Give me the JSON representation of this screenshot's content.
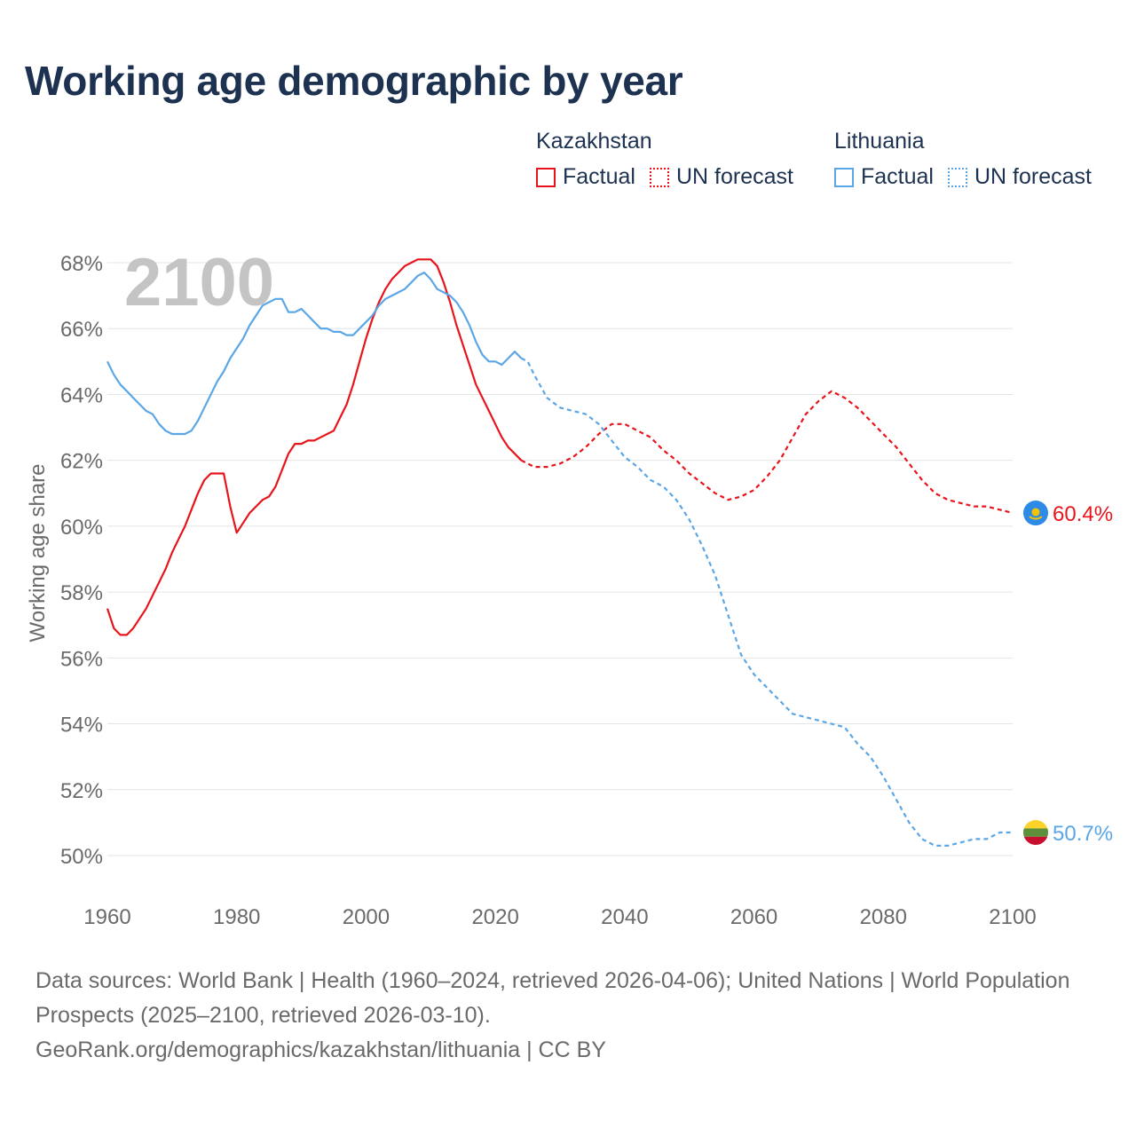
{
  "title": "Working age demographic by year",
  "year_watermark": "2100",
  "legend": {
    "groups": [
      {
        "name": "Kazakhstan",
        "factual_label": "Factual",
        "forecast_label": "UN forecast",
        "color": "#e8141b"
      },
      {
        "name": "Lithuania",
        "factual_label": "Factual",
        "forecast_label": "UN forecast",
        "color": "#5aa6e6"
      }
    ]
  },
  "end_labels": {
    "kazakhstan": "60.4%",
    "lithuania": "50.7%"
  },
  "footer": {
    "sources": "Data sources: World Bank | Health (1960–2024, retrieved 2026-04-06); United Nations | World Population Prospects (2025–2100, retrieved 2026-03-10).",
    "credit": "GeoRank.org/demographics/kazakhstan/lithuania | CC BY"
  },
  "chart_data": {
    "type": "line",
    "title": "Working age demographic by year",
    "ylabel": "Working age share",
    "xlabel": "",
    "xlim": [
      1960,
      2100
    ],
    "ylim": [
      50,
      68
    ],
    "x_ticks": [
      1960,
      1980,
      2000,
      2020,
      2040,
      2060,
      2080,
      2100
    ],
    "x_tick_labels": [
      "1960",
      "1980",
      "2000",
      "2020",
      "2040",
      "2060",
      "2080",
      "2100"
    ],
    "y_ticks": [
      50,
      52,
      54,
      56,
      58,
      60,
      62,
      64,
      66,
      68
    ],
    "y_tick_labels": [
      "50%",
      "52%",
      "54%",
      "56%",
      "58%",
      "60%",
      "62%",
      "64%",
      "66%",
      "68%"
    ],
    "factual_range": [
      1960,
      2024
    ],
    "forecast_range": [
      2025,
      2100
    ],
    "series": [
      {
        "name": "Kazakhstan",
        "color": "#e8141b",
        "points": [
          [
            1960,
            57.5
          ],
          [
            1961,
            56.9
          ],
          [
            1962,
            56.7
          ],
          [
            1963,
            56.7
          ],
          [
            1964,
            56.9
          ],
          [
            1965,
            57.2
          ],
          [
            1966,
            57.5
          ],
          [
            1967,
            57.9
          ],
          [
            1968,
            58.3
          ],
          [
            1969,
            58.7
          ],
          [
            1970,
            59.2
          ],
          [
            1971,
            59.6
          ],
          [
            1972,
            60.0
          ],
          [
            1973,
            60.5
          ],
          [
            1974,
            61.0
          ],
          [
            1975,
            61.4
          ],
          [
            1976,
            61.6
          ],
          [
            1977,
            61.6
          ],
          [
            1978,
            61.6
          ],
          [
            1979,
            60.6
          ],
          [
            1980,
            59.8
          ],
          [
            1981,
            60.1
          ],
          [
            1982,
            60.4
          ],
          [
            1983,
            60.6
          ],
          [
            1984,
            60.8
          ],
          [
            1985,
            60.9
          ],
          [
            1986,
            61.2
          ],
          [
            1987,
            61.7
          ],
          [
            1988,
            62.2
          ],
          [
            1989,
            62.5
          ],
          [
            1990,
            62.5
          ],
          [
            1991,
            62.6
          ],
          [
            1992,
            62.6
          ],
          [
            1993,
            62.7
          ],
          [
            1994,
            62.8
          ],
          [
            1995,
            62.9
          ],
          [
            1996,
            63.3
          ],
          [
            1997,
            63.7
          ],
          [
            1998,
            64.3
          ],
          [
            1999,
            65.0
          ],
          [
            2000,
            65.7
          ],
          [
            2001,
            66.3
          ],
          [
            2002,
            66.8
          ],
          [
            2003,
            67.2
          ],
          [
            2004,
            67.5
          ],
          [
            2005,
            67.7
          ],
          [
            2006,
            67.9
          ],
          [
            2007,
            68.0
          ],
          [
            2008,
            68.1
          ],
          [
            2009,
            68.1
          ],
          [
            2010,
            68.1
          ],
          [
            2011,
            67.9
          ],
          [
            2012,
            67.4
          ],
          [
            2013,
            66.8
          ],
          [
            2014,
            66.1
          ],
          [
            2015,
            65.5
          ],
          [
            2016,
            64.9
          ],
          [
            2017,
            64.3
          ],
          [
            2018,
            63.9
          ],
          [
            2019,
            63.5
          ],
          [
            2020,
            63.1
          ],
          [
            2021,
            62.7
          ],
          [
            2022,
            62.4
          ],
          [
            2023,
            62.2
          ],
          [
            2024,
            62.0
          ],
          [
            2025,
            61.9
          ],
          [
            2026,
            61.8
          ],
          [
            2028,
            61.8
          ],
          [
            2030,
            61.9
          ],
          [
            2032,
            62.1
          ],
          [
            2034,
            62.4
          ],
          [
            2036,
            62.8
          ],
          [
            2038,
            63.1
          ],
          [
            2040,
            63.1
          ],
          [
            2042,
            62.9
          ],
          [
            2044,
            62.7
          ],
          [
            2046,
            62.3
          ],
          [
            2048,
            62.0
          ],
          [
            2050,
            61.6
          ],
          [
            2052,
            61.3
          ],
          [
            2054,
            61.0
          ],
          [
            2056,
            60.8
          ],
          [
            2058,
            60.9
          ],
          [
            2060,
            61.1
          ],
          [
            2062,
            61.5
          ],
          [
            2064,
            62.0
          ],
          [
            2066,
            62.7
          ],
          [
            2068,
            63.4
          ],
          [
            2070,
            63.8
          ],
          [
            2072,
            64.1
          ],
          [
            2074,
            63.9
          ],
          [
            2076,
            63.6
          ],
          [
            2078,
            63.2
          ],
          [
            2080,
            62.8
          ],
          [
            2082,
            62.4
          ],
          [
            2084,
            61.9
          ],
          [
            2086,
            61.4
          ],
          [
            2088,
            61.0
          ],
          [
            2090,
            60.8
          ],
          [
            2092,
            60.7
          ],
          [
            2094,
            60.6
          ],
          [
            2096,
            60.6
          ],
          [
            2098,
            60.5
          ],
          [
            2100,
            60.4
          ]
        ]
      },
      {
        "name": "Lithuania",
        "color": "#5aa6e6",
        "points": [
          [
            1960,
            65.0
          ],
          [
            1961,
            64.6
          ],
          [
            1962,
            64.3
          ],
          [
            1963,
            64.1
          ],
          [
            1964,
            63.9
          ],
          [
            1965,
            63.7
          ],
          [
            1966,
            63.5
          ],
          [
            1967,
            63.4
          ],
          [
            1968,
            63.1
          ],
          [
            1969,
            62.9
          ],
          [
            1970,
            62.8
          ],
          [
            1971,
            62.8
          ],
          [
            1972,
            62.8
          ],
          [
            1973,
            62.9
          ],
          [
            1974,
            63.2
          ],
          [
            1975,
            63.6
          ],
          [
            1976,
            64.0
          ],
          [
            1977,
            64.4
          ],
          [
            1978,
            64.7
          ],
          [
            1979,
            65.1
          ],
          [
            1980,
            65.4
          ],
          [
            1981,
            65.7
          ],
          [
            1982,
            66.1
          ],
          [
            1983,
            66.4
          ],
          [
            1984,
            66.7
          ],
          [
            1985,
            66.8
          ],
          [
            1986,
            66.9
          ],
          [
            1987,
            66.9
          ],
          [
            1988,
            66.5
          ],
          [
            1989,
            66.5
          ],
          [
            1990,
            66.6
          ],
          [
            1991,
            66.4
          ],
          [
            1992,
            66.2
          ],
          [
            1993,
            66.0
          ],
          [
            1994,
            66.0
          ],
          [
            1995,
            65.9
          ],
          [
            1996,
            65.9
          ],
          [
            1997,
            65.8
          ],
          [
            1998,
            65.8
          ],
          [
            1999,
            66.0
          ],
          [
            2000,
            66.2
          ],
          [
            2001,
            66.4
          ],
          [
            2002,
            66.7
          ],
          [
            2003,
            66.9
          ],
          [
            2004,
            67.0
          ],
          [
            2005,
            67.1
          ],
          [
            2006,
            67.2
          ],
          [
            2007,
            67.4
          ],
          [
            2008,
            67.6
          ],
          [
            2009,
            67.7
          ],
          [
            2010,
            67.5
          ],
          [
            2011,
            67.2
          ],
          [
            2012,
            67.1
          ],
          [
            2013,
            67.0
          ],
          [
            2014,
            66.8
          ],
          [
            2015,
            66.5
          ],
          [
            2016,
            66.1
          ],
          [
            2017,
            65.6
          ],
          [
            2018,
            65.2
          ],
          [
            2019,
            65.0
          ],
          [
            2020,
            65.0
          ],
          [
            2021,
            64.9
          ],
          [
            2022,
            65.1
          ],
          [
            2023,
            65.3
          ],
          [
            2024,
            65.1
          ],
          [
            2025,
            65.0
          ],
          [
            2026,
            64.6
          ],
          [
            2028,
            63.9
          ],
          [
            2030,
            63.6
          ],
          [
            2032,
            63.5
          ],
          [
            2034,
            63.4
          ],
          [
            2036,
            63.1
          ],
          [
            2038,
            62.6
          ],
          [
            2040,
            62.1
          ],
          [
            2042,
            61.8
          ],
          [
            2044,
            61.4
          ],
          [
            2046,
            61.2
          ],
          [
            2048,
            60.8
          ],
          [
            2050,
            60.2
          ],
          [
            2052,
            59.4
          ],
          [
            2054,
            58.5
          ],
          [
            2056,
            57.3
          ],
          [
            2058,
            56.1
          ],
          [
            2060,
            55.5
          ],
          [
            2062,
            55.1
          ],
          [
            2064,
            54.7
          ],
          [
            2066,
            54.3
          ],
          [
            2068,
            54.2
          ],
          [
            2070,
            54.1
          ],
          [
            2072,
            54.0
          ],
          [
            2074,
            53.9
          ],
          [
            2076,
            53.4
          ],
          [
            2078,
            53.0
          ],
          [
            2080,
            52.4
          ],
          [
            2082,
            51.7
          ],
          [
            2084,
            51.0
          ],
          [
            2086,
            50.5
          ],
          [
            2088,
            50.3
          ],
          [
            2090,
            50.3
          ],
          [
            2092,
            50.4
          ],
          [
            2094,
            50.5
          ],
          [
            2096,
            50.5
          ],
          [
            2098,
            50.7
          ],
          [
            2100,
            50.7
          ]
        ]
      }
    ]
  }
}
